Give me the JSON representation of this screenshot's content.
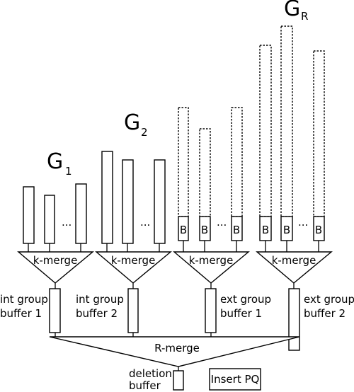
{
  "groups": [
    {
      "title_main": "G",
      "title_sub": "1",
      "merge_label": "k-merge",
      "ellipsis": "...",
      "buffer_label_line1": "int group",
      "buffer_label_line2": "buffer 1",
      "block_label": ""
    },
    {
      "title_main": "G",
      "title_sub": "2",
      "merge_label": "k-merge",
      "ellipsis": "...",
      "buffer_label_line1": "int group",
      "buffer_label_line2": "buffer 2",
      "block_label": ""
    },
    {
      "title_main": "",
      "title_sub": "",
      "merge_label": "k-merge",
      "ellipsis": "...",
      "buffer_label_line1": "ext group",
      "buffer_label_line2": "buffer 1",
      "block_label": "B"
    },
    {
      "title_main": "G",
      "title_sub": "R",
      "merge_label": "k-merge",
      "ellipsis": "...",
      "buffer_label_line1": "ext group",
      "buffer_label_line2": "buffer 2",
      "block_label": "B"
    }
  ],
  "r_merge_label": "R-merge",
  "deletion_buffer_line1": "deletion",
  "deletion_buffer_line2": "buffer",
  "insert_pq_label": "Insert PQ"
}
